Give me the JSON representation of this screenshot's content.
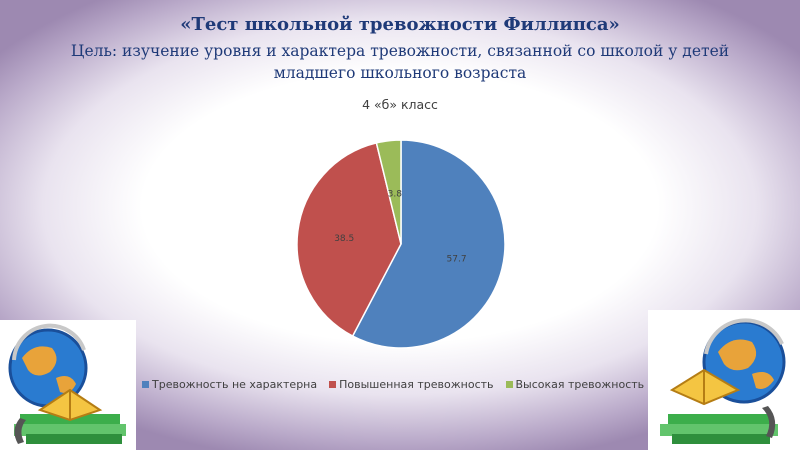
{
  "slide": {
    "title": "«Тест школьной тревожности Филлипса»",
    "subtitle": "Цель: изучение уровня и характера тревожности, связанной со школой у детей младшего школьного возраста"
  },
  "chart_data": {
    "type": "pie",
    "title": "4 «б» класс",
    "labels": [
      "Тревожность не характерна",
      "Повышенная тревожность",
      "Высокая тревожность"
    ],
    "values": [
      57.7,
      38.5,
      3.8
    ],
    "colors": [
      "#4f81bd",
      "#c0504d",
      "#9bbb59"
    ],
    "legend_position": "bottom",
    "data_labels": [
      "57.7",
      "38.5",
      "3.8"
    ]
  }
}
